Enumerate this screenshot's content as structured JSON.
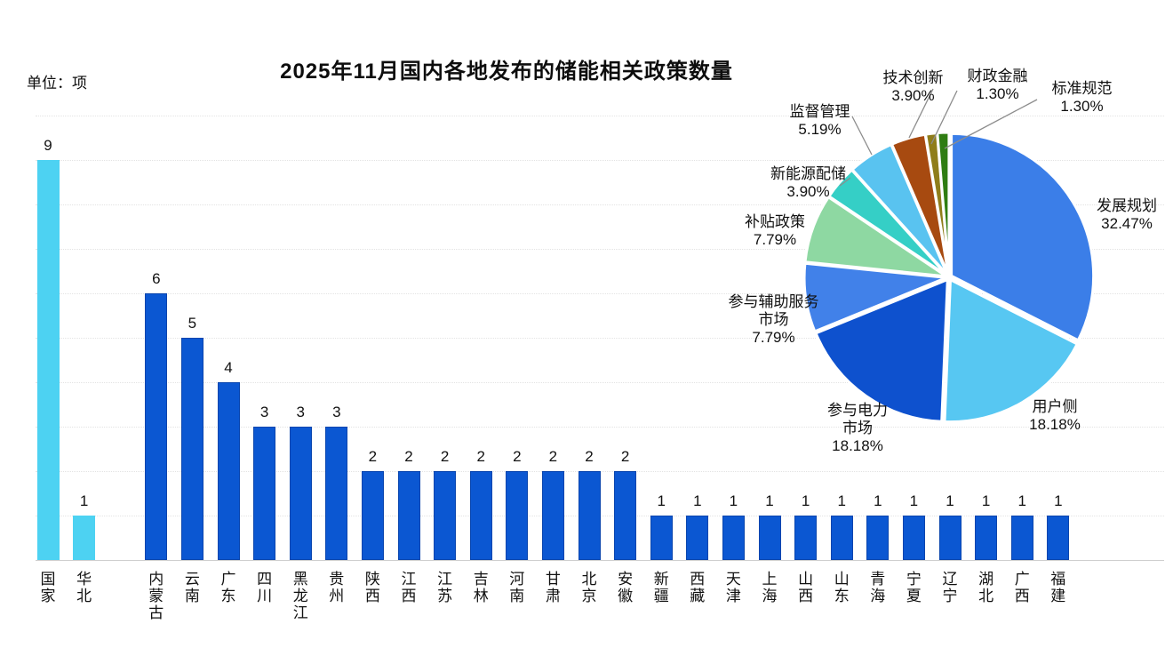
{
  "title": "2025年11月国内各地发布的储能相关政策数量",
  "unit_label": "单位：项",
  "chart_data": [
    {
      "type": "bar",
      "title": "2025年11月国内各地发布的储能相关政策数量",
      "ylabel": "项",
      "ylim": [
        0,
        10
      ],
      "grid": true,
      "value_labels": true,
      "categories": [
        "国家",
        "华北",
        "",
        "内蒙古",
        "云南",
        "广东",
        "四川",
        "黑龙江",
        "贵州",
        "陕西",
        "江西",
        "江苏",
        "吉林",
        "河南",
        "甘肃",
        "北京",
        "安徽",
        "新疆",
        "西藏",
        "天津",
        "上海",
        "山西",
        "山东",
        "青海",
        "宁夏",
        "辽宁",
        "湖北",
        "广西",
        "福建"
      ],
      "values": [
        9,
        1,
        null,
        6,
        5,
        4,
        3,
        3,
        3,
        2,
        2,
        2,
        2,
        2,
        2,
        2,
        2,
        1,
        1,
        1,
        1,
        1,
        1,
        1,
        1,
        1,
        1,
        1,
        1
      ],
      "highlight_indices": [
        0,
        1
      ],
      "colors": {
        "highlight": "#4dd2f2",
        "default": "#0b57d2"
      }
    },
    {
      "type": "pie",
      "legend_position": "outside-labels",
      "start_angle_deg": 0,
      "direction": "clockwise",
      "slices": [
        {
          "label": "发展规划",
          "label_lines": [
            "发展规划"
          ],
          "pct": 32.47,
          "pct_label": "32.47%",
          "color": "#3b7ee8"
        },
        {
          "label": "用户侧",
          "label_lines": [
            "用户侧"
          ],
          "pct": 18.18,
          "pct_label": "18.18%",
          "color": "#57c7f2"
        },
        {
          "label": "参与电力市场",
          "label_lines": [
            "参与电力",
            "市场"
          ],
          "pct": 18.18,
          "pct_label": "18.18%",
          "color": "#0e51ce"
        },
        {
          "label": "参与辅助服务市场",
          "label_lines": [
            "参与辅助服务",
            "市场"
          ],
          "pct": 7.79,
          "pct_label": "7.79%",
          "color": "#4181e9"
        },
        {
          "label": "补贴政策",
          "label_lines": [
            "补贴政策"
          ],
          "pct": 7.79,
          "pct_label": "7.79%",
          "color": "#8ed8a2"
        },
        {
          "label": "新能源配储",
          "label_lines": [
            "新能源配储"
          ],
          "pct": 3.9,
          "pct_label": "3.90%",
          "color": "#35cfc6"
        },
        {
          "label": "监督管理",
          "label_lines": [
            "监督管理"
          ],
          "pct": 5.19,
          "pct_label": "5.19%",
          "color": "#59c3f0"
        },
        {
          "label": "技术创新",
          "label_lines": [
            "技术创新"
          ],
          "pct": 3.9,
          "pct_label": "3.90%",
          "color": "#a74a10"
        },
        {
          "label": "财政金融",
          "label_lines": [
            "财政金融"
          ],
          "pct": 1.3,
          "pct_label": "1.30%",
          "color": "#8f7d1a"
        },
        {
          "label": "标准规范",
          "label_lines": [
            "标准规范"
          ],
          "pct": 1.3,
          "pct_label": "1.30%",
          "color": "#2f7d12"
        }
      ]
    }
  ]
}
